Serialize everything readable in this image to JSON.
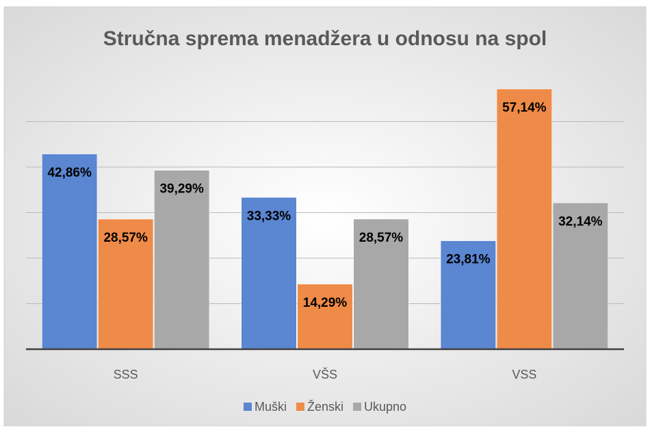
{
  "chart_data": {
    "type": "bar",
    "title": "Stručna sprema menadžera u odnosu na spol",
    "categories": [
      "SSS",
      "VŠS",
      "VSS"
    ],
    "series": [
      {
        "name": "Muški",
        "color": "#5a86d2",
        "values": [
          42.86,
          33.33,
          23.81
        ],
        "value_labels": [
          "42,86%",
          "33,33%",
          "23,81%"
        ]
      },
      {
        "name": "Ženski",
        "color": "#ef8b48",
        "values": [
          28.57,
          14.29,
          57.14
        ],
        "value_labels": [
          "28,57%",
          "14,29%",
          "57,14%"
        ]
      },
      {
        "name": "Ukupno",
        "color": "#a8a8a8",
        "values": [
          39.29,
          28.57,
          32.14
        ],
        "value_labels": [
          "39,29%",
          "28,57%",
          "32,14%"
        ]
      }
    ],
    "ylim": [
      0,
      60
    ],
    "yticks": [
      0,
      10,
      20,
      30,
      40,
      50
    ],
    "grid": true,
    "legend": "bottom"
  }
}
